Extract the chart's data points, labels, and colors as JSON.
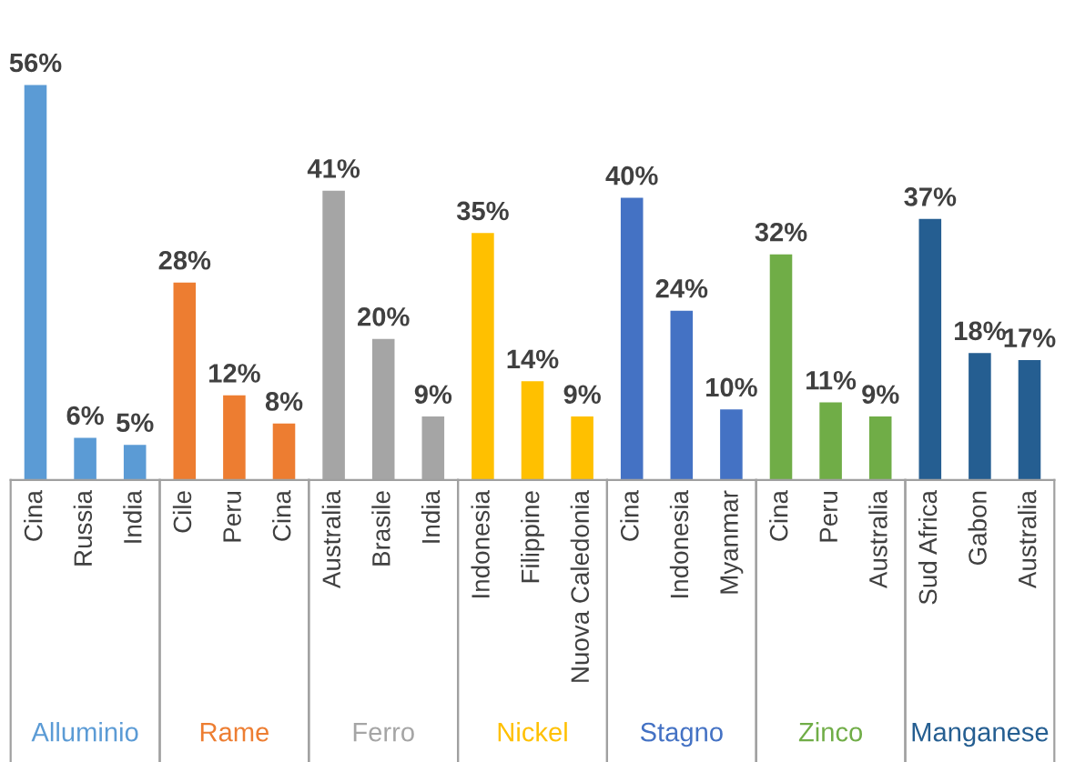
{
  "chart_data": {
    "type": "bar",
    "categories": [
      "Cina",
      "Russia",
      "India",
      "Cile",
      "Peru",
      "Cina",
      "Australia",
      "Brasile",
      "India",
      "Indonesia",
      "Filippine",
      "Nuova Caledonia",
      "Cina",
      "Indonesia",
      "Myanmar",
      "Cina",
      "Peru",
      "Australia",
      "Sud Africa",
      "Gabon",
      "Australia"
    ],
    "series": [
      {
        "name": "Alluminio",
        "color": "#5b9bd5",
        "values": [
          56,
          6,
          5,
          null,
          null,
          null,
          null,
          null,
          null,
          null,
          null,
          null,
          null,
          null,
          null,
          null,
          null,
          null,
          null,
          null,
          null
        ],
        "value_labels": [
          "56%",
          "6%",
          "5%",
          null,
          null,
          null,
          null,
          null,
          null,
          null,
          null,
          null,
          null,
          null,
          null,
          null,
          null,
          null,
          null,
          null,
          null
        ]
      },
      {
        "name": "Rame",
        "color": "#ed7d31",
        "values": [
          null,
          null,
          null,
          28,
          12,
          8,
          null,
          null,
          null,
          null,
          null,
          null,
          null,
          null,
          null,
          null,
          null,
          null,
          null,
          null,
          null
        ],
        "value_labels": [
          null,
          null,
          null,
          "28%",
          "12%",
          "8%",
          null,
          null,
          null,
          null,
          null,
          null,
          null,
          null,
          null,
          null,
          null,
          null,
          null,
          null,
          null
        ]
      },
      {
        "name": "Ferro",
        "color": "#a5a5a5",
        "values": [
          null,
          null,
          null,
          null,
          null,
          null,
          41,
          20,
          9,
          null,
          null,
          null,
          null,
          null,
          null,
          null,
          null,
          null,
          null,
          null,
          null
        ],
        "value_labels": [
          null,
          null,
          null,
          null,
          null,
          null,
          "41%",
          "20%",
          "9%",
          null,
          null,
          null,
          null,
          null,
          null,
          null,
          null,
          null,
          null,
          null,
          null
        ]
      },
      {
        "name": "Nickel",
        "color": "#ffc000",
        "values": [
          null,
          null,
          null,
          null,
          null,
          null,
          null,
          null,
          null,
          35,
          14,
          9,
          null,
          null,
          null,
          null,
          null,
          null,
          null,
          null,
          null
        ],
        "value_labels": [
          null,
          null,
          null,
          null,
          null,
          null,
          null,
          null,
          null,
          "35%",
          "14%",
          "9%",
          null,
          null,
          null,
          null,
          null,
          null,
          null,
          null,
          null
        ]
      },
      {
        "name": "Stagno",
        "color": "#4472c4",
        "values": [
          null,
          null,
          null,
          null,
          null,
          null,
          null,
          null,
          null,
          null,
          null,
          null,
          40,
          24,
          10,
          null,
          null,
          null,
          null,
          null,
          null
        ],
        "value_labels": [
          null,
          null,
          null,
          null,
          null,
          null,
          null,
          null,
          null,
          null,
          null,
          null,
          "40%",
          "24%",
          "10%",
          null,
          null,
          null,
          null,
          null,
          null
        ]
      },
      {
        "name": "Zinco",
        "color": "#70ad47",
        "values": [
          null,
          null,
          null,
          null,
          null,
          null,
          null,
          null,
          null,
          null,
          null,
          null,
          null,
          null,
          null,
          32,
          11,
          9,
          null,
          null,
          null
        ],
        "value_labels": [
          null,
          null,
          null,
          null,
          null,
          null,
          null,
          null,
          null,
          null,
          null,
          null,
          null,
          null,
          null,
          "32%",
          "11%",
          "9%",
          null,
          null,
          null
        ]
      },
      {
        "name": "Manganese",
        "color": "#255e91",
        "values": [
          null,
          null,
          null,
          null,
          null,
          null,
          null,
          null,
          null,
          null,
          null,
          null,
          null,
          null,
          null,
          null,
          null,
          null,
          37,
          18,
          17
        ],
        "value_labels": [
          null,
          null,
          null,
          null,
          null,
          null,
          null,
          null,
          null,
          null,
          null,
          null,
          null,
          null,
          null,
          null,
          null,
          null,
          "37%",
          "18%",
          "17%"
        ]
      }
    ],
    "grid": false,
    "legend": false
  }
}
